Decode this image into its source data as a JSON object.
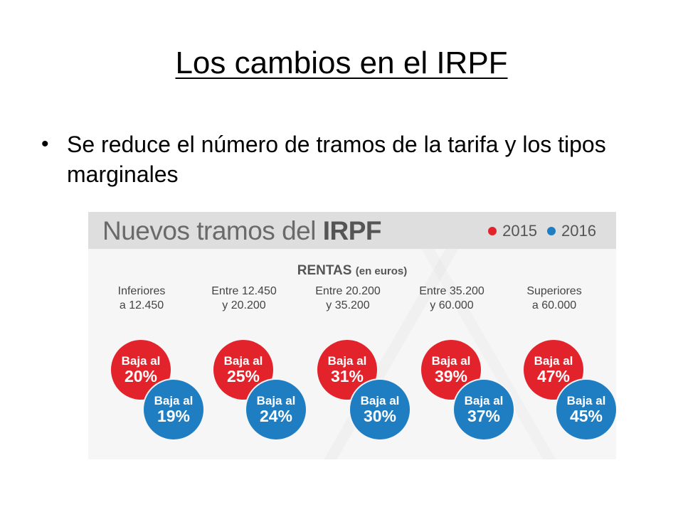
{
  "slide": {
    "title": "Los cambios en el IRPF",
    "bullet": "Se reduce el número de tramos de la tarifa y los tipos marginales"
  },
  "graphic": {
    "title_light": "Nuevos tramos del ",
    "title_bold": "IRPF",
    "legend": [
      {
        "label": "2015",
        "color": "#e3232c"
      },
      {
        "label": "2016",
        "color": "#1f7dc2"
      }
    ],
    "rentas_label": "RENTAS",
    "rentas_sub": "(en euros)",
    "groups": [
      {
        "label_line1": "Inferiores",
        "label_line2": "a 12.450",
        "red_label": "Baja al",
        "red_value": "20%",
        "blue_label": "Baja al",
        "blue_value": "19%"
      },
      {
        "label_line1": "Entre 12.450",
        "label_line2": "y 20.200",
        "red_label": "Baja al",
        "red_value": "25%",
        "blue_label": "Baja al",
        "blue_value": "24%"
      },
      {
        "label_line1": "Entre 20.200",
        "label_line2": "y 35.200",
        "red_label": "Baja al",
        "red_value": "31%",
        "blue_label": "Baja al",
        "blue_value": "30%"
      },
      {
        "label_line1": "Entre 35.200",
        "label_line2": "y 60.000",
        "red_label": "Baja al",
        "red_value": "39%",
        "blue_label": "Baja al",
        "blue_value": "37%"
      },
      {
        "label_line1": "Superiores",
        "label_line2": "a 60.000",
        "red_label": "Baja al",
        "red_value": "47%",
        "blue_label": "Baja al",
        "blue_value": "45%"
      }
    ]
  }
}
